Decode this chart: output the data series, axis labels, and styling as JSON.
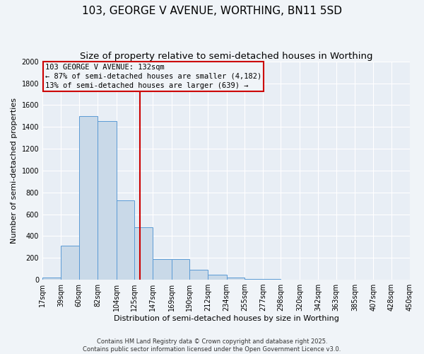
{
  "title1": "103, GEORGE V AVENUE, WORTHING, BN11 5SD",
  "title2": "Size of property relative to semi-detached houses in Worthing",
  "xlabel": "Distribution of semi-detached houses by size in Worthing",
  "ylabel": "Number of semi-detached properties",
  "bar_left_edges": [
    17,
    39,
    60,
    82,
    104,
    125,
    147,
    169,
    190,
    212,
    234,
    255,
    277,
    298,
    320,
    342,
    363,
    385,
    407,
    428
  ],
  "bar_widths": [
    22,
    21,
    22,
    22,
    21,
    22,
    22,
    21,
    22,
    22,
    21,
    22,
    21,
    22,
    22,
    21,
    22,
    22,
    21,
    22
  ],
  "bar_heights": [
    17,
    312,
    1500,
    1450,
    725,
    480,
    190,
    190,
    90,
    45,
    18,
    5,
    5,
    0,
    0,
    0,
    0,
    0,
    0,
    0
  ],
  "xtick_labels": [
    "17sqm",
    "39sqm",
    "60sqm",
    "82sqm",
    "104sqm",
    "125sqm",
    "147sqm",
    "169sqm",
    "190sqm",
    "212sqm",
    "234sqm",
    "255sqm",
    "277sqm",
    "298sqm",
    "320sqm",
    "342sqm",
    "363sqm",
    "385sqm",
    "407sqm",
    "428sqm",
    "450sqm"
  ],
  "xtick_positions": [
    17,
    39,
    60,
    82,
    104,
    125,
    147,
    169,
    190,
    212,
    234,
    255,
    277,
    298,
    320,
    342,
    363,
    385,
    407,
    428,
    450
  ],
  "bar_color": "#c9d9e8",
  "bar_edge_color": "#5b9bd5",
  "vline_x": 132,
  "vline_color": "#cc0000",
  "ylim": [
    0,
    2000
  ],
  "xlim": [
    17,
    450
  ],
  "annotation_title": "103 GEORGE V AVENUE: 132sqm",
  "annotation_line1": "← 87% of semi-detached houses are smaller (4,182)",
  "annotation_line2": "13% of semi-detached houses are larger (639) →",
  "annotation_box_color": "#cc0000",
  "footer1": "Contains HM Land Registry data © Crown copyright and database right 2025.",
  "footer2": "Contains public sector information licensed under the Open Government Licence v3.0.",
  "bg_color": "#f0f4f8",
  "plot_bg_color": "#e8eef5",
  "grid_color": "#ffffff",
  "title1_fontsize": 11,
  "title2_fontsize": 9.5,
  "axis_label_fontsize": 8,
  "tick_fontsize": 7,
  "annotation_fontsize": 7.5,
  "footer_fontsize": 6
}
